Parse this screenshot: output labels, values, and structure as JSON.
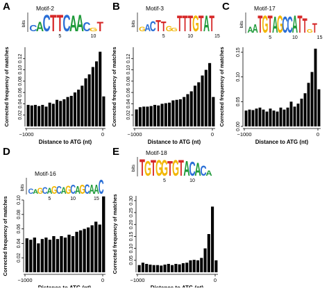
{
  "chart_data": [
    {
      "panel": "A",
      "type": "bar",
      "motif_label": "Motif-2",
      "logo_text": "CACTTCAACGT",
      "logo_colors": [
        "#2b6fd6",
        "#1f9a3a",
        "#2b6fd6",
        "#d62828",
        "#d62828",
        "#2b6fd6",
        "#1f9a3a",
        "#1f9a3a",
        "#2b6fd6",
        "#f2b705",
        "#d62828"
      ],
      "logo_heights": [
        0.35,
        0.55,
        0.95,
        0.95,
        0.95,
        0.95,
        0.9,
        0.95,
        0.5,
        0.2,
        0.55
      ],
      "logo_ticks": [
        "5",
        "10"
      ],
      "logo_ylabel": "bits",
      "x_start": -1000,
      "x_end": 0,
      "xticks": [
        -1000,
        0
      ],
      "xtick_labels": [
        "−1000",
        "0"
      ],
      "ylim": [
        0,
        0.14
      ],
      "yticks": [
        0.02,
        0.04,
        0.06,
        0.08,
        0.1,
        0.12
      ],
      "ytick_labels": [
        "0.02",
        "0.04",
        "0.06",
        "0.08",
        "0.10",
        "0.12"
      ],
      "values": [
        0.038,
        0.037,
        0.038,
        0.036,
        0.038,
        0.035,
        0.042,
        0.04,
        0.047,
        0.045,
        0.048,
        0.052,
        0.054,
        0.06,
        0.065,
        0.072,
        0.085,
        0.092,
        0.105,
        0.115,
        0.132,
        0.053
      ],
      "xlabel": "Distance to ATG (nt)",
      "ylabel": "Corrected frequency of matches"
    },
    {
      "panel": "B",
      "type": "bar",
      "motif_label": "Motif-3",
      "logo_text": "GACTTGGTTTGTAT",
      "logo_colors": [
        "#f2b705",
        "#2b6fd6",
        "#2b6fd6",
        "#d62828",
        "#d62828",
        "#f2b705",
        "#f2b705",
        "#d62828",
        "#d62828",
        "#d62828",
        "#f2b705",
        "#d62828",
        "#1f9a3a",
        "#d62828"
      ],
      "logo_heights": [
        0.25,
        0.4,
        0.6,
        0.65,
        0.55,
        0.3,
        0.2,
        0.9,
        0.9,
        0.9,
        0.9,
        0.9,
        0.9,
        0.9
      ],
      "logo_ticks": [
        "5",
        "10",
        "15"
      ],
      "logo_ylabel": "bits",
      "x_start": -1000,
      "x_end": 0,
      "xticks": [
        -1000,
        0
      ],
      "xtick_labels": [
        "−1000",
        "0"
      ],
      "ylim": [
        0,
        0.14
      ],
      "yticks": [
        0.02,
        0.04,
        0.06,
        0.08,
        0.1,
        0.12
      ],
      "ytick_labels": [
        "0.02",
        "0.04",
        "0.06",
        "0.08",
        "0.10",
        "0.12"
      ],
      "values": [
        0.03,
        0.034,
        0.035,
        0.035,
        0.036,
        0.038,
        0.037,
        0.04,
        0.041,
        0.042,
        0.046,
        0.047,
        0.048,
        0.052,
        0.057,
        0.062,
        0.072,
        0.078,
        0.09,
        0.1,
        0.112,
        0.052
      ],
      "xlabel": "Distance to ATG (nt)",
      "ylabel": "Corrected frequency of matches"
    },
    {
      "panel": "C",
      "type": "bar",
      "motif_label": "Motif-17",
      "logo_text": "AATGTAGCCATTGT",
      "logo_colors": [
        "#1f9a3a",
        "#1f9a3a",
        "#d62828",
        "#f2b705",
        "#d62828",
        "#1f9a3a",
        "#f2b705",
        "#2b6fd6",
        "#2b6fd6",
        "#1f9a3a",
        "#d62828",
        "#d62828",
        "#f2b705",
        "#d62828"
      ],
      "logo_heights": [
        0.3,
        0.45,
        0.9,
        0.9,
        0.9,
        0.85,
        0.9,
        0.85,
        0.85,
        0.9,
        0.9,
        0.75,
        0.2,
        0.5
      ],
      "logo_ticks": [
        "5",
        "10",
        "15"
      ],
      "logo_ylabel": "bits",
      "x_start": -1000,
      "x_end": 0,
      "xticks": [
        -1000,
        0
      ],
      "xtick_labels": [
        "−1000",
        "0"
      ],
      "ylim": [
        0,
        0.16
      ],
      "yticks": [
        0.0,
        0.05,
        0.1,
        0.15
      ],
      "ytick_labels": [
        "0.00",
        "0.05",
        "0.10",
        "0.15"
      ],
      "values": [
        0.032,
        0.034,
        0.033,
        0.036,
        0.038,
        0.034,
        0.03,
        0.036,
        0.032,
        0.03,
        0.038,
        0.034,
        0.038,
        0.05,
        0.04,
        0.046,
        0.056,
        0.067,
        0.088,
        0.11,
        0.157,
        0.075
      ],
      "xlabel": "Distance to ATG (nt)",
      "ylabel": "Corrected frequency of matches"
    },
    {
      "panel": "D",
      "type": "bar",
      "motif_label": "Motif-16",
      "logo_text": "CAGCAGCAGCAGCAAC",
      "logo_colors": [
        "#2b6fd6",
        "#1f9a3a",
        "#f2b705",
        "#2b6fd6",
        "#1f9a3a",
        "#f2b705",
        "#2b6fd6",
        "#1f9a3a",
        "#f2b705",
        "#2b6fd6",
        "#1f9a3a",
        "#f2b705",
        "#2b6fd6",
        "#1f9a3a",
        "#1f9a3a",
        "#2b6fd6"
      ],
      "logo_heights": [
        0.35,
        0.3,
        0.4,
        0.45,
        0.4,
        0.5,
        0.5,
        0.45,
        0.55,
        0.6,
        0.5,
        0.6,
        0.65,
        0.6,
        0.6,
        0.95
      ],
      "logo_ticks": [
        "5",
        "10",
        "15"
      ],
      "logo_ylabel": "bits",
      "x_start": -1000,
      "x_end": 0,
      "xticks": [
        -1000,
        0
      ],
      "xtick_labels": [
        "−1000",
        "0"
      ],
      "ylim": [
        0,
        0.1
      ],
      "yticks": [
        0.02,
        0.04,
        0.06,
        0.08,
        0.1
      ],
      "ytick_labels": [
        "0.02",
        "0.04",
        "0.06",
        "0.08",
        "0.10"
      ],
      "values": [
        0.047,
        0.045,
        0.048,
        0.04,
        0.046,
        0.048,
        0.045,
        0.05,
        0.046,
        0.05,
        0.048,
        0.052,
        0.05,
        0.056,
        0.058,
        0.06,
        0.062,
        0.065,
        0.07,
        0.066,
        0.105
      ],
      "xlabel": "Distance to ATG (nt)",
      "ylabel": "Corrected frequency of matches"
    },
    {
      "panel": "E",
      "type": "bar",
      "motif_label": "Motif-18",
      "logo_text": "TGTGGTGTACACA",
      "logo_colors": [
        "#d62828",
        "#f2b705",
        "#d62828",
        "#f2b705",
        "#f2b705",
        "#d62828",
        "#f2b705",
        "#d62828",
        "#1f9a3a",
        "#2b6fd6",
        "#1f9a3a",
        "#2b6fd6",
        "#1f9a3a"
      ],
      "logo_heights": [
        0.95,
        0.85,
        0.9,
        0.9,
        0.9,
        0.85,
        0.9,
        0.9,
        0.85,
        0.8,
        0.75,
        0.6,
        0.3
      ],
      "logo_ticks": [
        "5",
        "10"
      ],
      "logo_ylabel": "bits",
      "x_start": -1000,
      "x_end": 0,
      "xticks": [
        -1000,
        0
      ],
      "xtick_labels": [
        "−1000",
        "0"
      ],
      "ylim": [
        0,
        0.32
      ],
      "yticks": [
        0.05,
        0.1,
        0.15,
        0.2,
        0.25,
        0.3
      ],
      "ytick_labels": [
        "0.05",
        "0.10",
        "0.15",
        "0.20",
        "0.25",
        "0.30"
      ],
      "values": [
        0.03,
        0.04,
        0.035,
        0.032,
        0.03,
        0.03,
        0.028,
        0.032,
        0.035,
        0.03,
        0.035,
        0.033,
        0.038,
        0.04,
        0.05,
        0.052,
        0.05,
        0.06,
        0.1,
        0.16,
        0.275,
        0.05
      ],
      "xlabel": "Distance to ATG (nt)",
      "ylabel": "Corrected frequency of matches"
    }
  ]
}
